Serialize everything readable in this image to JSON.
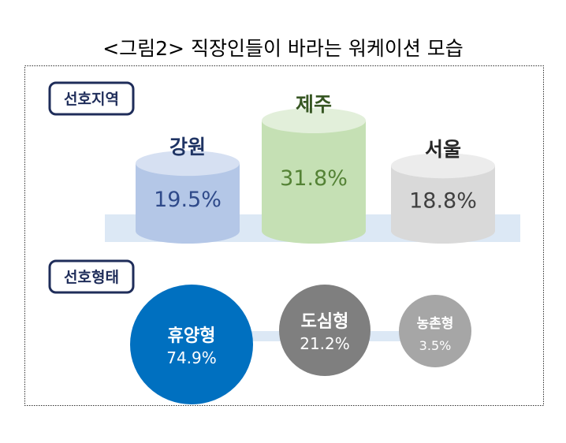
{
  "title": "<그림2> 직장인들이 바라는 워케이션 모습",
  "chart_data": [
    {
      "type": "bar",
      "title": "선호지역",
      "categories": [
        "강원",
        "제주",
        "서울"
      ],
      "values": [
        19.5,
        31.8,
        18.8
      ],
      "value_labels": [
        "19.5%",
        "31.8%",
        "18.8%"
      ],
      "unit": "%",
      "colors": [
        "#b4c7e7",
        "#c5e0b4",
        "#d9d9d9"
      ],
      "label_colors": [
        "#1f3464",
        "#375623",
        "#262626"
      ],
      "value_colors": [
        "#2f4a8a",
        "#548235",
        "#404040"
      ]
    },
    {
      "type": "scatter",
      "title": "선호형태",
      "categories": [
        "휴양형",
        "도심형",
        "농촌형"
      ],
      "values": [
        74.9,
        21.2,
        3.5
      ],
      "value_labels": [
        "74.9%",
        "21.2%",
        "3.5%"
      ],
      "unit": "%",
      "colors": [
        "#0070c0",
        "#7f7f7f",
        "#a6a6a6"
      ]
    }
  ]
}
